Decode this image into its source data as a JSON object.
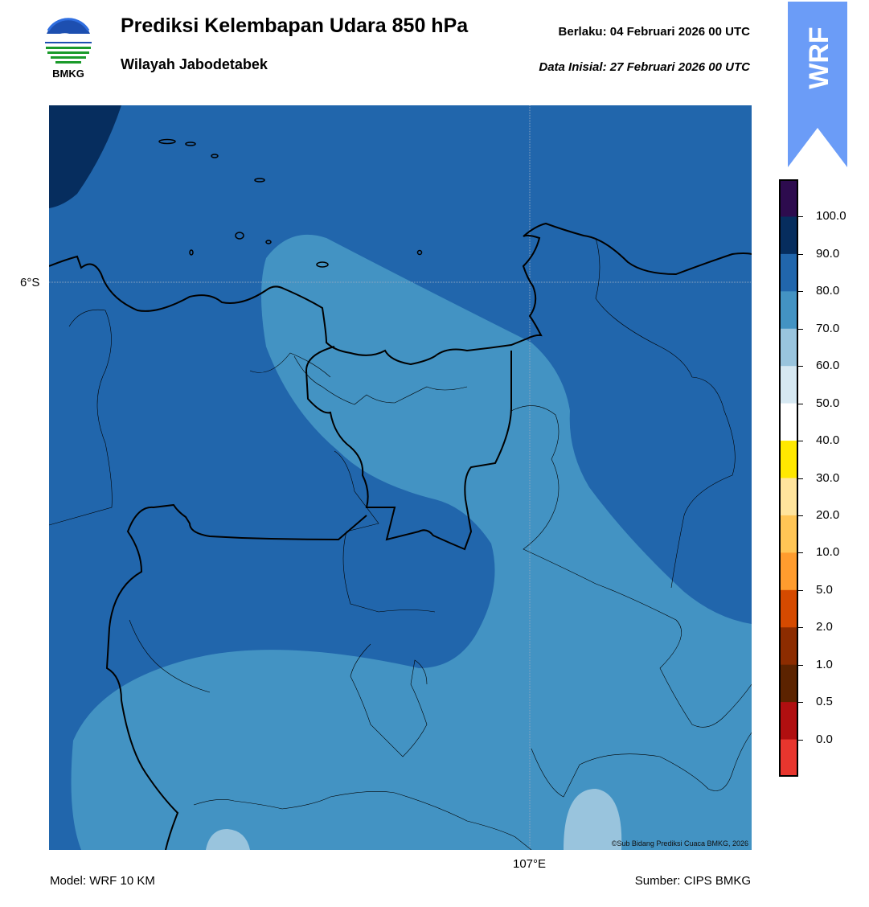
{
  "header": {
    "title": "Prediksi Kelembapan Udara 850 hPa",
    "subtitle": "Wilayah Jabodetabek",
    "valid": "Berlaku:  04 Februari 2026 00 UTC",
    "initial": "Data Inisial:  27 Februari 2026 00 UTC"
  },
  "logo": {
    "text": "BMKG",
    "icon": "bmkg-logo-icon"
  },
  "badge": {
    "text": "WRF",
    "color": "#6b9cf7"
  },
  "map": {
    "lat_label": "6°S",
    "lon_label": "107°E",
    "copyright": "©Sub Bidang Prediksi Cuaca BMKG, 2026",
    "colors": {
      "lvl60_70": "#99c4dd",
      "lvl70_80": "#4393c3",
      "lvl80_90": "#2166ac",
      "lvl90_100": "#062d5e",
      "coast": "#000000"
    }
  },
  "colorbar": {
    "labels": [
      "100.0",
      "90.0",
      "80.0",
      "70.0",
      "60.0",
      "50.0",
      "40.0",
      "30.0",
      "20.0",
      "10.0",
      "5.0",
      "2.0",
      "1.0",
      "0.5",
      "0.0"
    ],
    "colors": [
      "#2d0b4e",
      "#062d5e",
      "#2166ac",
      "#4393c3",
      "#99c4dd",
      "#d6e8f2",
      "#ffffff",
      "#ffe800",
      "#ffe49c",
      "#ffc555",
      "#ff9c2e",
      "#d54a00",
      "#8c2c00",
      "#5c2300",
      "#b00f10",
      "#e8362e"
    ]
  },
  "footer": {
    "model": "Model: WRF 10 KM",
    "source": "Sumber: CIPS BMKG"
  }
}
